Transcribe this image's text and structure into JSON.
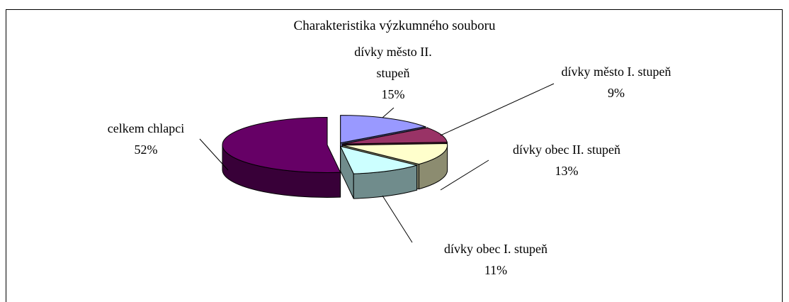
{
  "chart_data": {
    "type": "pie3d",
    "title": "Charakteristika výzkumného souboru",
    "categories": [
      "dívky město II. stupeň",
      "dívky město I. stupeň",
      "dívky obec II. stupeň",
      "dívky obec I. stupeň",
      "celkem chlapci"
    ],
    "values": [
      15,
      9,
      13,
      11,
      52
    ],
    "value_labels": [
      "15%",
      "9%",
      "13%",
      "11%",
      "52%"
    ],
    "colors": [
      "#9999ff",
      "#993366",
      "#ffffcc",
      "#ccffff",
      "#660066"
    ]
  }
}
